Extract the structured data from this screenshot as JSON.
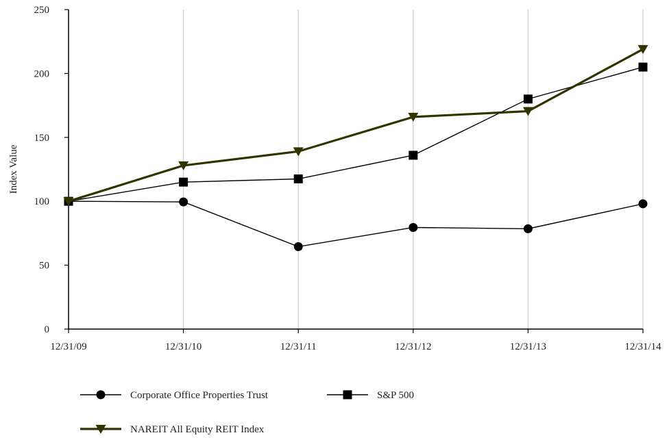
{
  "chart_data": {
    "type": "line",
    "title": "",
    "xlabel": "",
    "ylabel": "Index Value",
    "categories": [
      "12/31/09",
      "12/31/10",
      "12/31/11",
      "12/31/12",
      "12/31/13",
      "12/31/14"
    ],
    "ylim": [
      0,
      250
    ],
    "yticks": [
      0,
      50,
      100,
      150,
      200,
      250
    ],
    "grid": "vertical",
    "legend_position": "bottom",
    "series": [
      {
        "name": "Corporate Office Properties Trust",
        "marker": "circle",
        "color": "#000000",
        "values": [
          100,
          99.5,
          64.5,
          79.5,
          78.5,
          98
        ]
      },
      {
        "name": "S&P 500",
        "marker": "square",
        "color": "#000000",
        "values": [
          100,
          115,
          117.5,
          136,
          180,
          205
        ]
      },
      {
        "name": "NAREIT All Equity REIT Index",
        "marker": "triangle-down",
        "color": "#333300",
        "values": [
          100,
          128,
          139,
          166,
          170.5,
          219
        ]
      }
    ]
  }
}
